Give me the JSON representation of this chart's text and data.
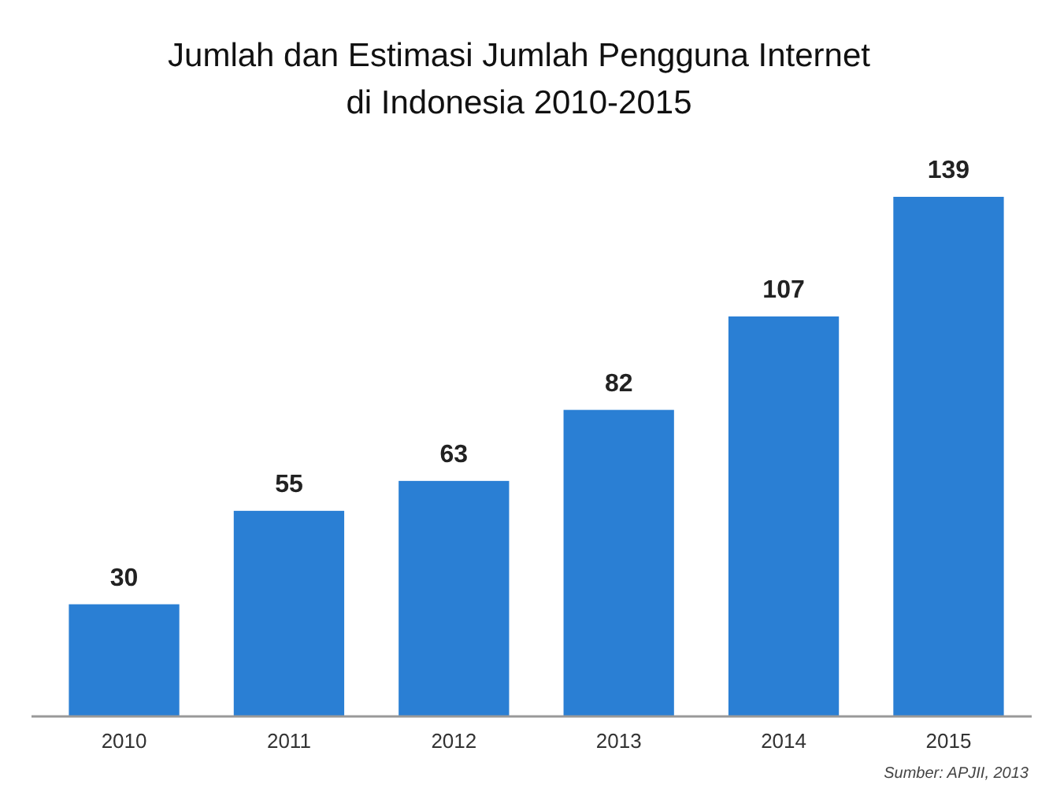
{
  "chart_data": {
    "type": "bar",
    "title": "Jumlah dan Estimasi Jumlah Pengguna Internet\ndi Indonesia 2010-2015",
    "categories": [
      "2010",
      "2011",
      "2012",
      "2013",
      "2014",
      "2015"
    ],
    "values": [
      30,
      55,
      63,
      82,
      107,
      139
    ],
    "color": "#2a7fd4",
    "data_labels": true,
    "annotations": [
      "Sumber: APJII, 2013"
    ]
  }
}
